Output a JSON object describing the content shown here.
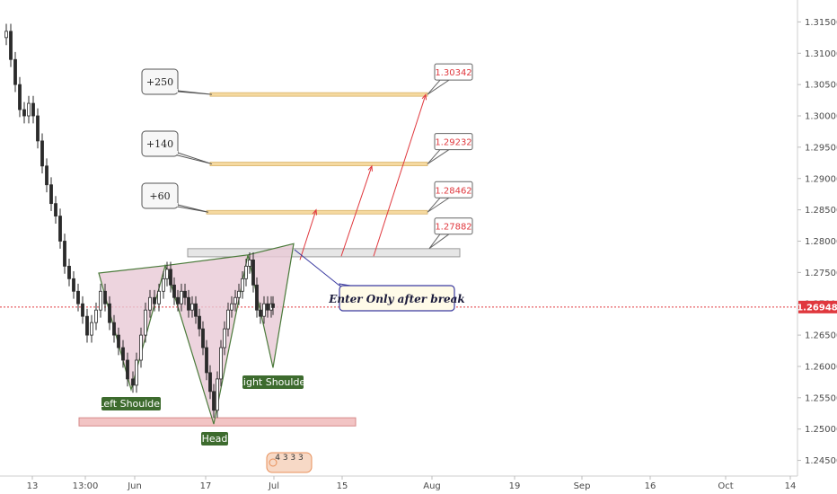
{
  "chart_data": {
    "type": "candlestick",
    "x_ticks": [
      "13",
      "13:00",
      "Jun",
      "17",
      "Jul",
      "15",
      "Aug",
      "19",
      "Sep",
      "16",
      "Oct",
      "14"
    ],
    "y_ticks": [
      1.245,
      1.25,
      1.255,
      1.26,
      1.265,
      1.27,
      1.275,
      1.28,
      1.285,
      1.29,
      1.295,
      1.3,
      1.305,
      1.31,
      1.315
    ],
    "y_tick_labels": [
      "1.24500",
      "1.25000",
      "1.25500",
      "1.26000",
      "1.26500",
      "1.27000",
      "1.27500",
      "1.28000",
      "1.28500",
      "1.29000",
      "1.29500",
      "1.30000",
      "1.30500",
      "1.31000",
      "1.31500"
    ],
    "ylim": [
      1.2425,
      1.3185
    ],
    "current_price": 1.26948,
    "current_price_label": "1.26948",
    "neckline_zone": [
      1.2775,
      1.2788
    ],
    "support_zone": [
      1.2505,
      1.2518
    ],
    "targets": [
      {
        "callout": "+60",
        "price_label": "1.28462",
        "price": 1.28462
      },
      {
        "callout": "+140",
        "price_label": "1.29232",
        "price": 1.29232
      },
      {
        "callout": "+250",
        "price_label": "1.30342",
        "price": 1.30342
      }
    ],
    "extra_price_box": {
      "price_label": "1.27882",
      "price": 1.27882
    },
    "pattern_labels": {
      "left": "Left Shoulder",
      "head": "Head",
      "right": "Right Shoulder"
    },
    "note": "Enter Only after break",
    "events_badge": "4 3 3   3",
    "colors": {
      "price_line": "#e0383e",
      "target_band": "#f5d9a0",
      "pattern_fill": "#e8c9d6",
      "pattern_line": "#4a7a3a",
      "label_bg": "#3d6b2e",
      "note_border": "#3a3aa0",
      "arrow": "#e0383e"
    }
  }
}
